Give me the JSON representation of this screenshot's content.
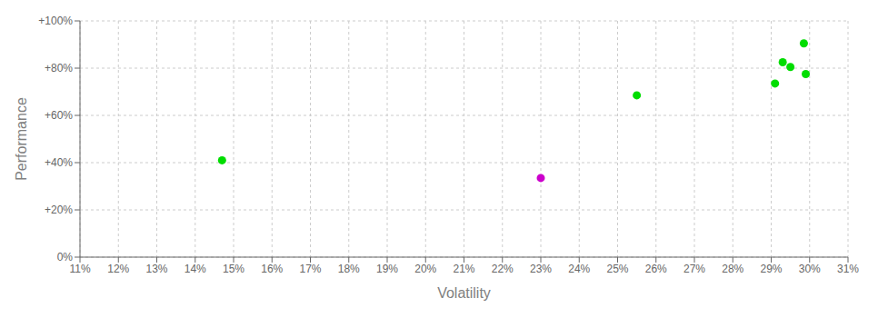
{
  "chart_data": {
    "type": "scatter",
    "x_label": "Volatility",
    "y_label": "Performance",
    "xlim": [
      0.11,
      0.31
    ],
    "ylim": [
      0.0,
      1.0
    ],
    "xticks": [
      {
        "value": 0.11,
        "label": "11%"
      },
      {
        "value": 0.12,
        "label": "12%"
      },
      {
        "value": 0.13,
        "label": "13%"
      },
      {
        "value": 0.14,
        "label": "14%"
      },
      {
        "value": 0.15,
        "label": "15%"
      },
      {
        "value": 0.16,
        "label": "16%"
      },
      {
        "value": 0.17,
        "label": "17%"
      },
      {
        "value": 0.18,
        "label": "18%"
      },
      {
        "value": 0.19,
        "label": "19%"
      },
      {
        "value": 0.2,
        "label": "20%"
      },
      {
        "value": 0.21,
        "label": "21%"
      },
      {
        "value": 0.22,
        "label": "22%"
      },
      {
        "value": 0.23,
        "label": "23%"
      },
      {
        "value": 0.24,
        "label": "24%"
      },
      {
        "value": 0.25,
        "label": "25%"
      },
      {
        "value": 0.26,
        "label": "26%"
      },
      {
        "value": 0.27,
        "label": "27%"
      },
      {
        "value": 0.28,
        "label": "28%"
      },
      {
        "value": 0.29,
        "label": "29%"
      },
      {
        "value": 0.3,
        "label": "30%"
      },
      {
        "value": 0.31,
        "label": "31%"
      }
    ],
    "yticks": [
      {
        "value": 0.0,
        "label": "0%"
      },
      {
        "value": 0.2,
        "label": "+20%"
      },
      {
        "value": 0.4,
        "label": "+40%"
      },
      {
        "value": 0.6,
        "label": "+60%"
      },
      {
        "value": 0.8,
        "label": "+80%"
      },
      {
        "value": 1.0,
        "label": "+100%"
      }
    ],
    "grid": true,
    "series": [
      {
        "color": "#00dd00",
        "x": [
          0.147,
          0.255,
          0.291,
          0.293,
          0.295,
          0.2985,
          0.299
        ],
        "values": [
          0.41,
          0.685,
          0.735,
          0.825,
          0.805,
          0.905,
          0.775
        ]
      },
      {
        "color": "#cc00cc",
        "x": [
          0.23
        ],
        "values": [
          0.335
        ]
      }
    ]
  }
}
